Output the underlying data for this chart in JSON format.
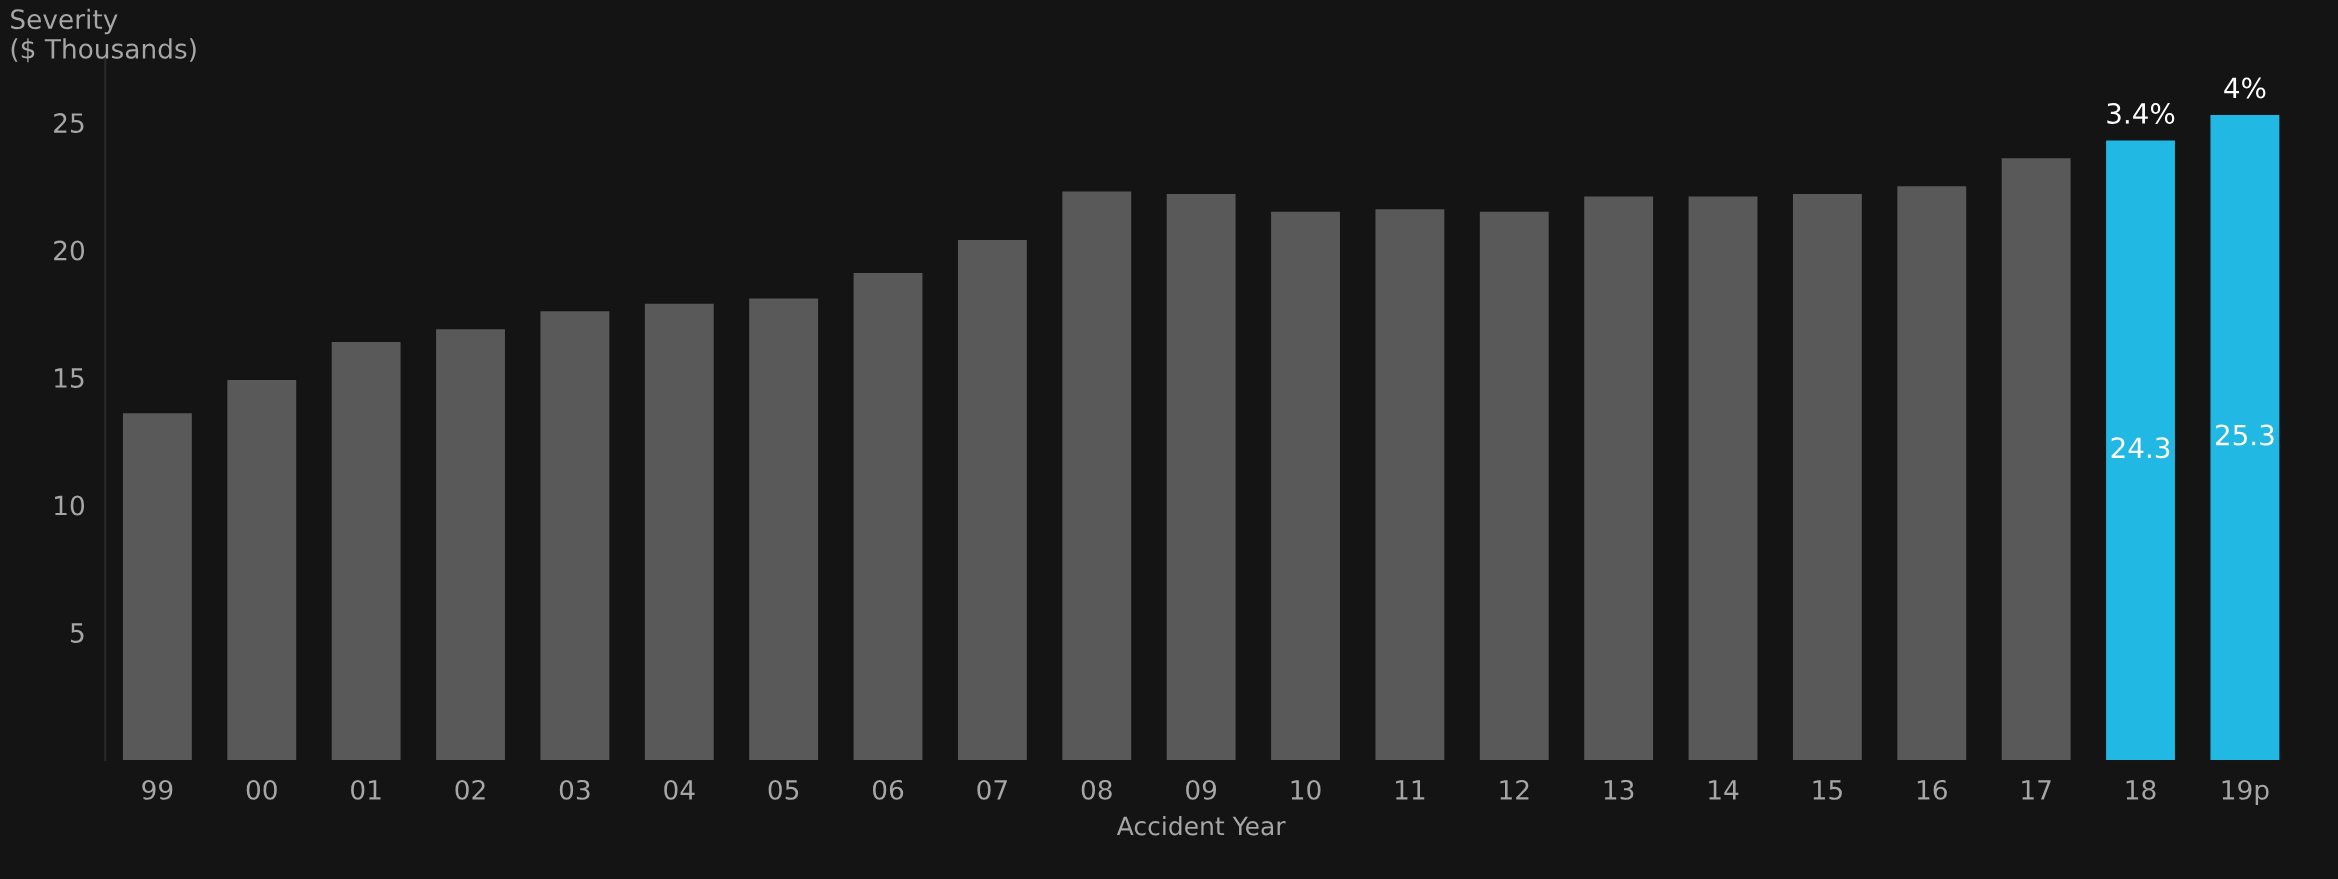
{
  "chart_data": {
    "type": "bar",
    "xlabel": "Accident Year",
    "ylabel": "Severity\n($ Thousands)",
    "categories": [
      "99",
      "00",
      "01",
      "02",
      "03",
      "04",
      "05",
      "06",
      "07",
      "08",
      "09",
      "10",
      "11",
      "12",
      "13",
      "14",
      "15",
      "16",
      "17",
      "18",
      "19p"
    ],
    "values": [
      13.6,
      14.9,
      16.4,
      16.9,
      17.6,
      17.9,
      18.1,
      19.1,
      20.4,
      22.3,
      22.2,
      21.5,
      21.6,
      21.5,
      22.1,
      22.1,
      22.2,
      22.5,
      23.6,
      24.3,
      25.3
    ],
    "colors": [
      "#595959",
      "#595959",
      "#595959",
      "#595959",
      "#595959",
      "#595959",
      "#595959",
      "#595959",
      "#595959",
      "#595959",
      "#595959",
      "#595959",
      "#595959",
      "#595959",
      "#595959",
      "#595959",
      "#595959",
      "#595959",
      "#595959",
      "#22b8e4",
      "#22b8e4"
    ],
    "value_labels": [
      null,
      null,
      null,
      null,
      null,
      null,
      null,
      null,
      null,
      null,
      null,
      null,
      null,
      null,
      null,
      null,
      null,
      null,
      null,
      "24.3",
      "25.3"
    ],
    "annotations": [
      {
        "text": "3.4%",
        "x": "18",
        "y": 24.3
      },
      {
        "text": "4%",
        "x": "19p",
        "y": 25.3
      }
    ],
    "ylim": [
      0,
      27.5
    ],
    "yticks": [
      5,
      10,
      15,
      20,
      25
    ],
    "grid": false,
    "legend": false
  }
}
